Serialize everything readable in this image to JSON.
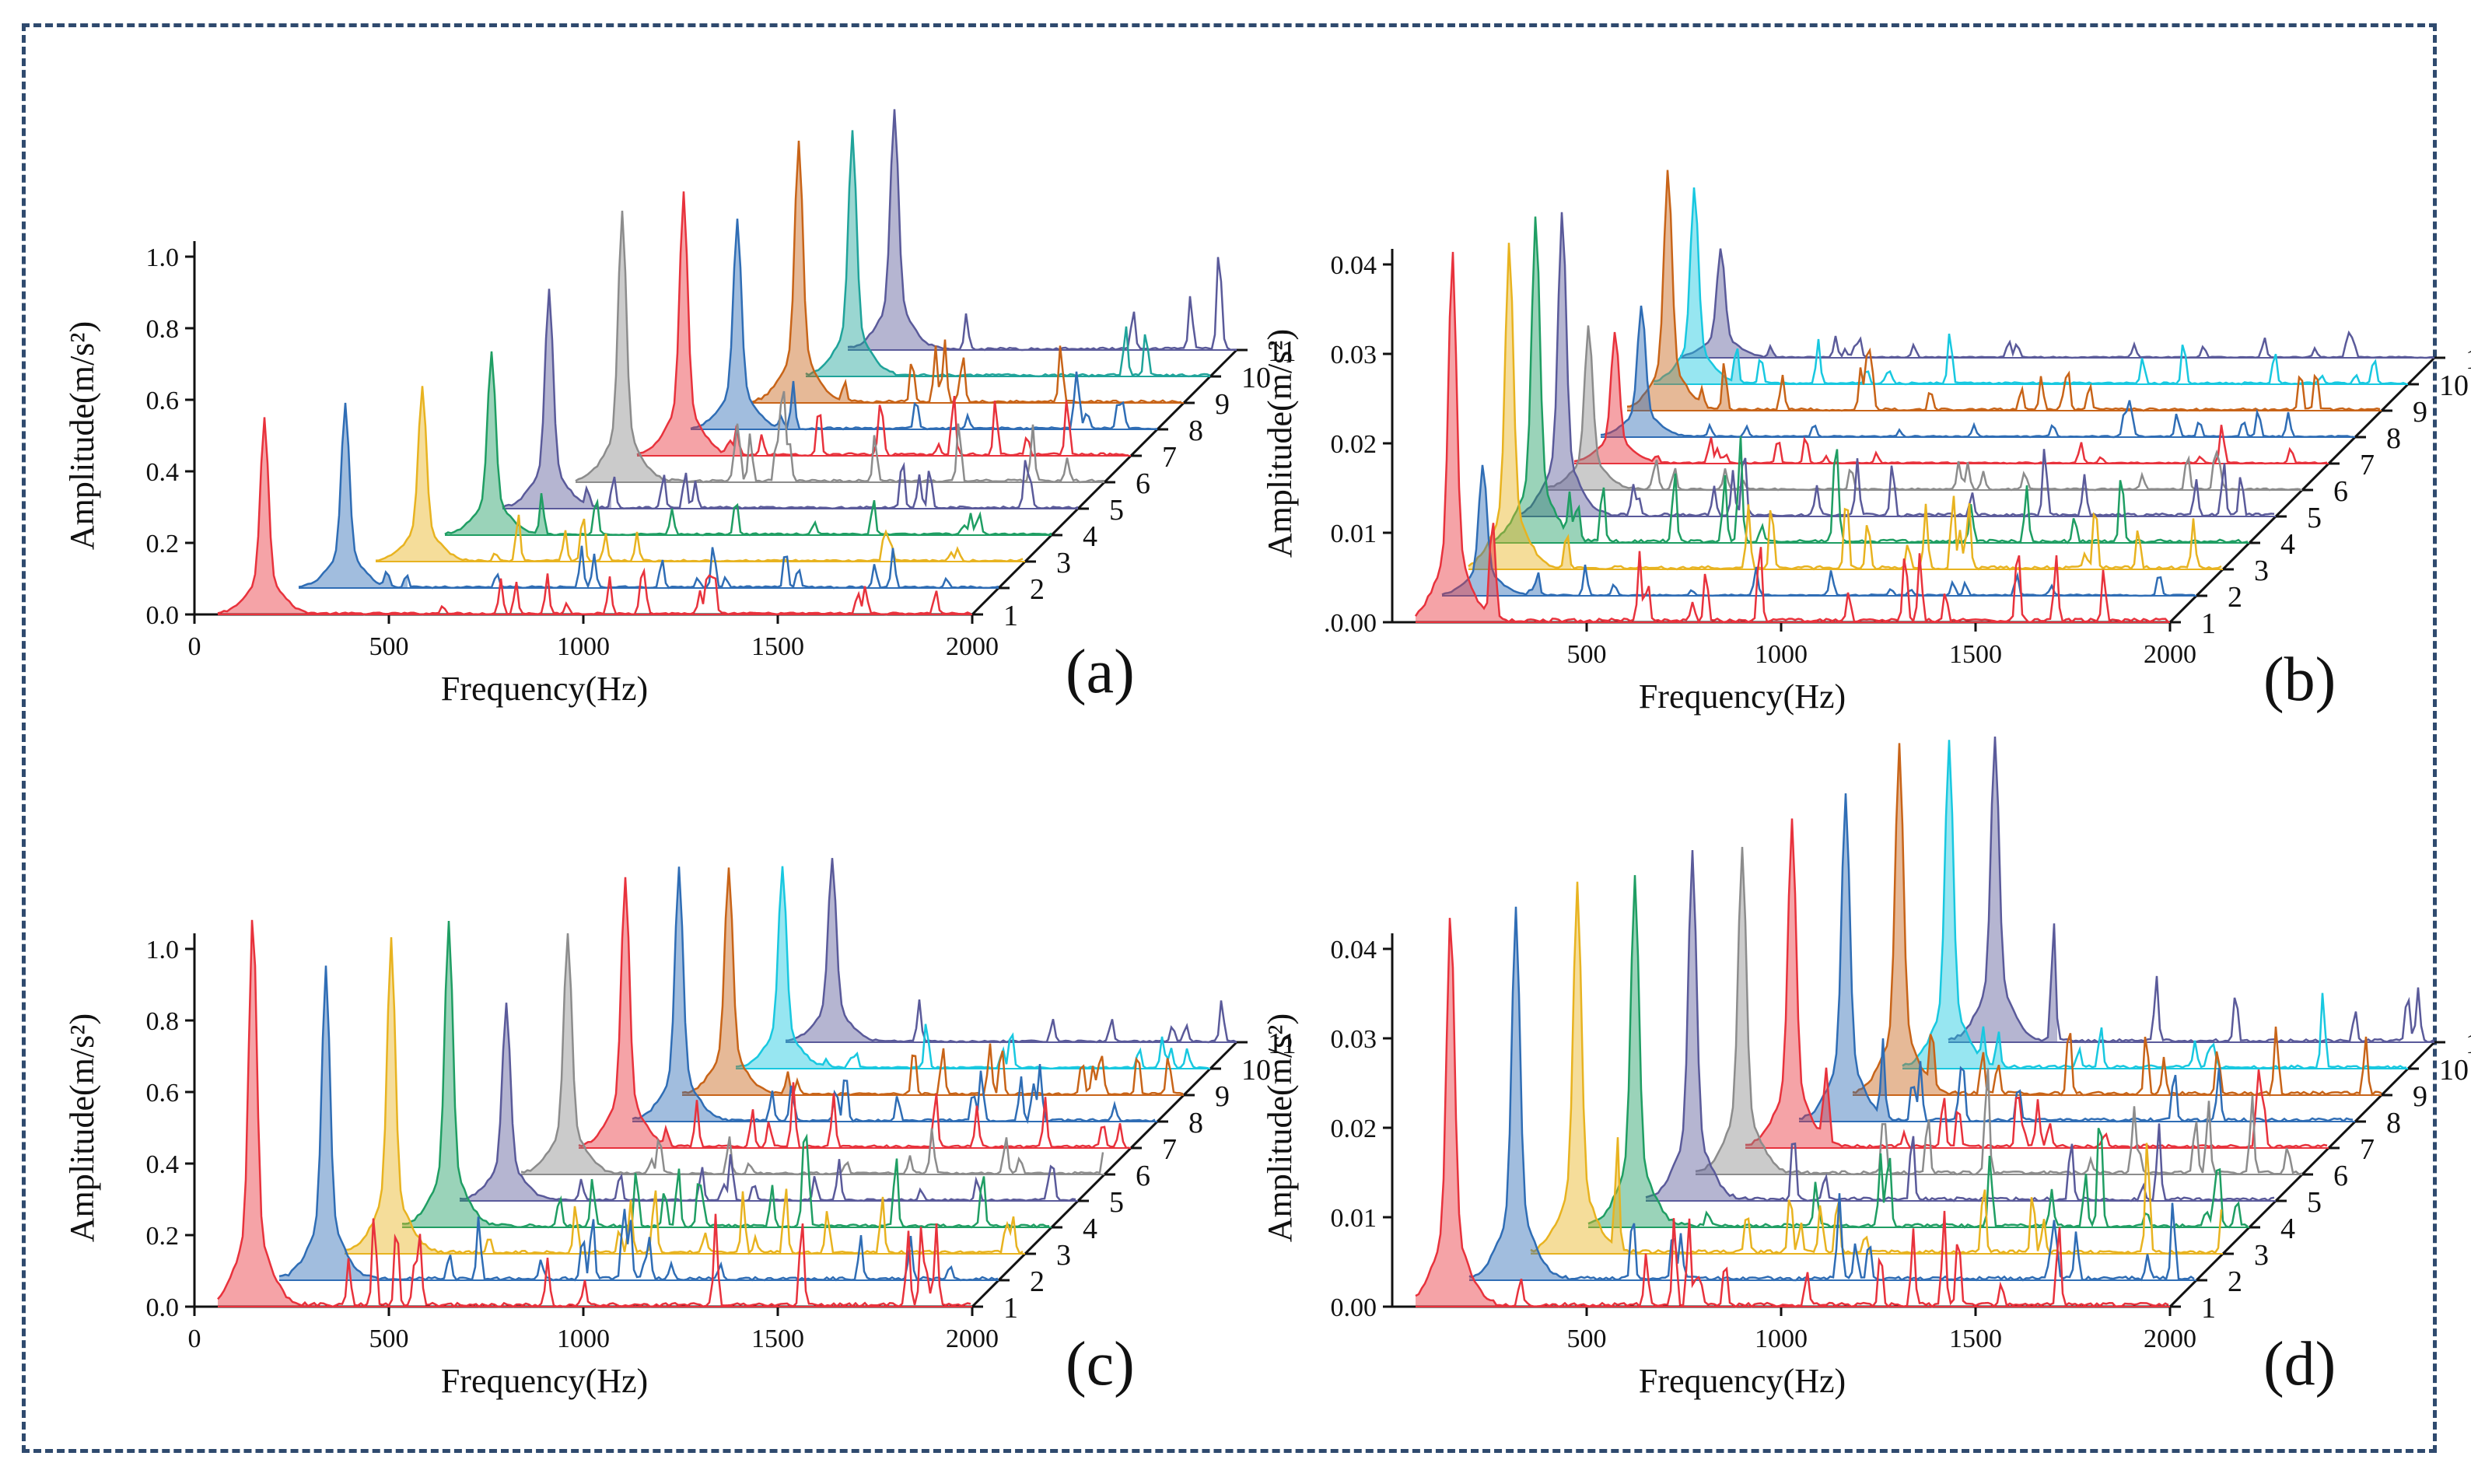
{
  "chart_data": [
    {
      "type": "area",
      "panel_label": "(a)",
      "xlabel": "Frequency(Hz)",
      "ylabel": "Amplitude(m/s²)",
      "xlim": [
        0,
        2000
      ],
      "ylim": [
        0,
        1.0
      ],
      "xticks": [
        "0",
        "500",
        "1000",
        "1500",
        "2000"
      ],
      "yticks": [
        "0.0",
        "0.2",
        "0.4",
        "0.6",
        "0.8",
        "1.0"
      ],
      "series_labels": [
        "1",
        "2",
        "3",
        "4",
        "5",
        "6",
        "7",
        "8",
        "9",
        "10",
        "11"
      ],
      "colors": [
        "#e8323c",
        "#2f6db5",
        "#e8b320",
        "#1f9e63",
        "#5a5a9a",
        "#8c8c8c",
        "#e8323c",
        "#2f6db5",
        "#c86418",
        "#1fa39a",
        "#5a5a9a"
      ],
      "peaks": [
        {
          "label": "1",
          "f0": 180,
          "a0": 0.45
        },
        {
          "label": "2",
          "f0": 320,
          "a0": 0.42
        },
        {
          "label": "3",
          "f0": 450,
          "a0": 0.4
        },
        {
          "label": "4",
          "f0": 560,
          "a0": 0.42
        },
        {
          "label": "5",
          "f0": 640,
          "a0": 0.5
        },
        {
          "label": "6",
          "f0": 760,
          "a0": 0.62
        },
        {
          "label": "7",
          "f0": 850,
          "a0": 0.6
        },
        {
          "label": "8",
          "f0": 920,
          "a0": 0.48
        },
        {
          "label": "9",
          "f0": 1010,
          "a0": 0.6
        },
        {
          "label": "10",
          "f0": 1080,
          "a0": 0.56
        },
        {
          "label": "11",
          "f0": 1120,
          "a0": 0.55
        }
      ]
    },
    {
      "type": "area",
      "panel_label": "(b)",
      "xlabel": "Frequency(Hz)",
      "ylabel": "Amplitude(m/s²)",
      "xlim": [
        0,
        2000
      ],
      "ylim": [
        0,
        0.04
      ],
      "xticks": [
        "500",
        "1000",
        "1500",
        "2000"
      ],
      "yticks": [
        ".0.00",
        "0.01",
        "0.02",
        "0.03",
        "0.04"
      ],
      "series_labels": [
        "1",
        "2",
        "3",
        "4",
        "5",
        "6",
        "7",
        "8",
        "9",
        "10",
        "11"
      ],
      "colors": [
        "#e8323c",
        "#2f6db5",
        "#e8b320",
        "#1f9e63",
        "#5a5a9a",
        "#8c8c8c",
        "#e8323c",
        "#2f6db5",
        "#c86418",
        "#18c8e0",
        "#5a5a9a"
      ],
      "peaks": [
        {
          "label": "1",
          "f0": 155,
          "a0": 0.034
        },
        {
          "label": "2",
          "f0": 165,
          "a0": 0.012
        },
        {
          "label": "3",
          "f0": 165,
          "a0": 0.03
        },
        {
          "label": "4",
          "f0": 165,
          "a0": 0.03
        },
        {
          "label": "5",
          "f0": 165,
          "a0": 0.028
        },
        {
          "label": "6",
          "f0": 165,
          "a0": 0.015
        },
        {
          "label": "7",
          "f0": 165,
          "a0": 0.012
        },
        {
          "label": "8",
          "f0": 165,
          "a0": 0.012
        },
        {
          "label": "9",
          "f0": 165,
          "a0": 0.022
        },
        {
          "label": "10",
          "f0": 165,
          "a0": 0.018
        },
        {
          "label": "11",
          "f0": 165,
          "a0": 0.01
        }
      ]
    },
    {
      "type": "area",
      "panel_label": "(c)",
      "xlabel": "Frequency(Hz)",
      "ylabel": "Amplitude(m/s²)",
      "xlim": [
        0,
        2000
      ],
      "ylim": [
        0,
        1.0
      ],
      "xticks": [
        "0",
        "500",
        "1000",
        "1500",
        "2000"
      ],
      "yticks": [
        "0.0",
        "0.2",
        "0.4",
        "0.6",
        "0.8",
        "1.0"
      ],
      "series_labels": [
        "1",
        "2",
        "3",
        "4",
        "5",
        "6",
        "7",
        "8",
        "9",
        "10",
        "11"
      ],
      "colors": [
        "#e8323c",
        "#2f6db5",
        "#e8b320",
        "#1f9e63",
        "#5a5a9a",
        "#8c8c8c",
        "#e8323c",
        "#2f6db5",
        "#c86418",
        "#18c8e0",
        "#5a5a9a"
      ],
      "peaks": [
        {
          "label": "1",
          "f0": 150,
          "a0": 0.9
        },
        {
          "label": "2",
          "f0": 270,
          "a0": 0.72
        },
        {
          "label": "3",
          "f0": 370,
          "a0": 0.72
        },
        {
          "label": "4",
          "f0": 450,
          "a0": 0.7
        },
        {
          "label": "5",
          "f0": 530,
          "a0": 0.45
        },
        {
          "label": "6",
          "f0": 620,
          "a0": 0.55
        },
        {
          "label": "7",
          "f0": 700,
          "a0": 0.62
        },
        {
          "label": "8",
          "f0": 770,
          "a0": 0.58
        },
        {
          "label": "9",
          "f0": 830,
          "a0": 0.52
        },
        {
          "label": "10",
          "f0": 900,
          "a0": 0.46
        },
        {
          "label": "11",
          "f0": 960,
          "a0": 0.42
        }
      ]
    },
    {
      "type": "area",
      "panel_label": "(d)",
      "xlabel": "Frequency(Hz)",
      "ylabel": "Amplitude(m/s²)",
      "xlim": [
        0,
        2000
      ],
      "ylim": [
        0,
        0.04
      ],
      "xticks": [
        "500",
        "1000",
        "1500",
        "2000"
      ],
      "yticks": [
        "0.00",
        "0.01",
        "0.02",
        "0.03",
        "0.04"
      ],
      "series_labels": [
        "1",
        "2",
        "3",
        "4",
        "5",
        "6",
        "7",
        "8",
        "9",
        "10",
        "11"
      ],
      "colors": [
        "#e8323c",
        "#2f6db5",
        "#e8b320",
        "#1f9e63",
        "#5a5a9a",
        "#8c8c8c",
        "#e8323c",
        "#2f6db5",
        "#c86418",
        "#18c8e0",
        "#5a5a9a"
      ],
      "peaks": [
        {
          "label": "1",
          "f0": 150,
          "a0": 0.036
        },
        {
          "label": "2",
          "f0": 250,
          "a0": 0.034
        },
        {
          "label": "3",
          "f0": 340,
          "a0": 0.034
        },
        {
          "label": "4",
          "f0": 420,
          "a0": 0.032
        },
        {
          "label": "5",
          "f0": 500,
          "a0": 0.032
        },
        {
          "label": "6",
          "f0": 560,
          "a0": 0.03
        },
        {
          "label": "7",
          "f0": 620,
          "a0": 0.03
        },
        {
          "label": "8",
          "f0": 690,
          "a0": 0.03
        },
        {
          "label": "9",
          "f0": 760,
          "a0": 0.032
        },
        {
          "label": "10",
          "f0": 820,
          "a0": 0.03
        },
        {
          "label": "11",
          "f0": 870,
          "a0": 0.028
        }
      ]
    }
  ]
}
